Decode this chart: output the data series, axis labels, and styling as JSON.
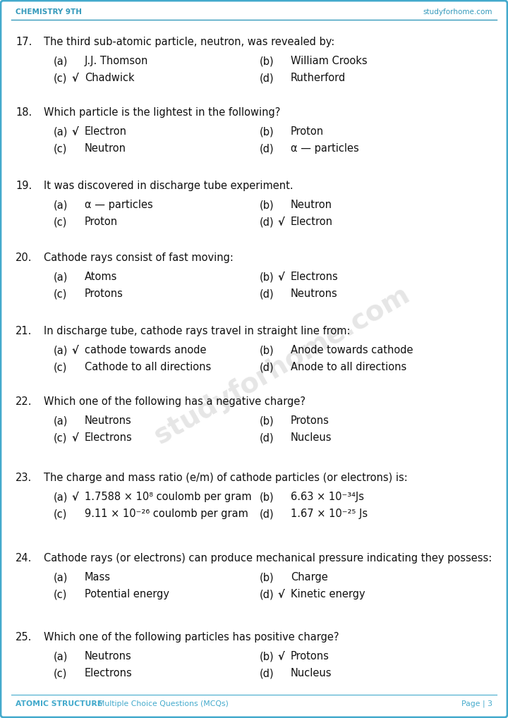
{
  "header_left": "CHEMISTRY 9TH",
  "header_right": "studyforhome.com",
  "header_color": "#3399bb",
  "bg_color": "#ffffff",
  "border_color": "#44aacc",
  "footer_left_bold": "ATOMIC STRUCTURE",
  "footer_left_normal": " - Multiple Choice Questions (MCQs)",
  "footer_right": "Page | 3",
  "footer_color": "#44aacc",
  "questions": [
    {
      "num": "17.",
      "text": "The third sub-atomic particle, neutron, was revealed by:",
      "options": [
        {
          "label": "(a)",
          "check": false,
          "text": "J.J. Thomson"
        },
        {
          "label": "(b)",
          "check": false,
          "text": "William Crooks"
        },
        {
          "label": "(c)",
          "check": true,
          "text": "Chadwick"
        },
        {
          "label": "(d)",
          "check": false,
          "text": "Rutherford"
        }
      ]
    },
    {
      "num": "18.",
      "text": "Which particle is the lightest in the following?",
      "options": [
        {
          "label": "(a)",
          "check": true,
          "text": "Electron"
        },
        {
          "label": "(b)",
          "check": false,
          "text": "Proton"
        },
        {
          "label": "(c)",
          "check": false,
          "text": "Neutron"
        },
        {
          "label": "(d)",
          "check": false,
          "text": "α — particles"
        }
      ]
    },
    {
      "num": "19.",
      "text": "It was discovered in discharge tube experiment.",
      "options": [
        {
          "label": "(a)",
          "check": false,
          "text": "α — particles"
        },
        {
          "label": "(b)",
          "check": false,
          "text": "Neutron"
        },
        {
          "label": "(c)",
          "check": false,
          "text": "Proton"
        },
        {
          "label": "(d)",
          "check": true,
          "text": "Electron"
        }
      ]
    },
    {
      "num": "20.",
      "text": "Cathode rays consist of fast moving:",
      "options": [
        {
          "label": "(a)",
          "check": false,
          "text": "Atoms"
        },
        {
          "label": "(b)",
          "check": true,
          "text": "Electrons"
        },
        {
          "label": "(c)",
          "check": false,
          "text": "Protons"
        },
        {
          "label": "(d)",
          "check": false,
          "text": "Neutrons"
        }
      ]
    },
    {
      "num": "21.",
      "text": "In discharge tube, cathode rays travel in straight line from:",
      "options": [
        {
          "label": "(a)",
          "check": true,
          "text": "cathode towards anode"
        },
        {
          "label": "(b)",
          "check": false,
          "text": "Anode towards cathode"
        },
        {
          "label": "(c)",
          "check": false,
          "text": "Cathode to all directions"
        },
        {
          "label": "(d)",
          "check": false,
          "text": "Anode to all directions"
        }
      ]
    },
    {
      "num": "22.",
      "text": "Which one of the following has a negative charge?",
      "options": [
        {
          "label": "(a)",
          "check": false,
          "text": "Neutrons"
        },
        {
          "label": "(b)",
          "check": false,
          "text": "Protons"
        },
        {
          "label": "(c)",
          "check": true,
          "text": "Electrons"
        },
        {
          "label": "(d)",
          "check": false,
          "text": "Nucleus"
        }
      ]
    },
    {
      "num": "23.",
      "text": "The charge and mass ratio (e/m) of cathode particles (or electrons) is:",
      "options": [
        {
          "label": "(a)",
          "check": true,
          "text": "1.7588 × 10⁸ coulomb per gram"
        },
        {
          "label": "(b)",
          "check": false,
          "text": "6.63 × 10⁻³⁴Js"
        },
        {
          "label": "(c)",
          "check": false,
          "text": "9.11 × 10⁻²⁶ coulomb per gram"
        },
        {
          "label": "(d)",
          "check": false,
          "text": "1.67 × 10⁻²⁵ Js"
        }
      ]
    },
    {
      "num": "24.",
      "text": "Cathode rays (or electrons) can produce mechanical pressure indicating they possess:",
      "options": [
        {
          "label": "(a)",
          "check": false,
          "text": "Mass"
        },
        {
          "label": "(b)",
          "check": false,
          "text": "Charge"
        },
        {
          "label": "(c)",
          "check": false,
          "text": "Potential energy"
        },
        {
          "label": "(d)",
          "check": true,
          "text": "Kinetic energy"
        }
      ]
    },
    {
      "num": "25.",
      "text": "Which one of the following particles has positive charge?",
      "options": [
        {
          "label": "(a)",
          "check": false,
          "text": "Neutrons"
        },
        {
          "label": "(b)",
          "check": true,
          "text": "Protons"
        },
        {
          "label": "(c)",
          "check": false,
          "text": "Electrons"
        },
        {
          "label": "(d)",
          "check": false,
          "text": "Nucleus"
        }
      ]
    }
  ]
}
